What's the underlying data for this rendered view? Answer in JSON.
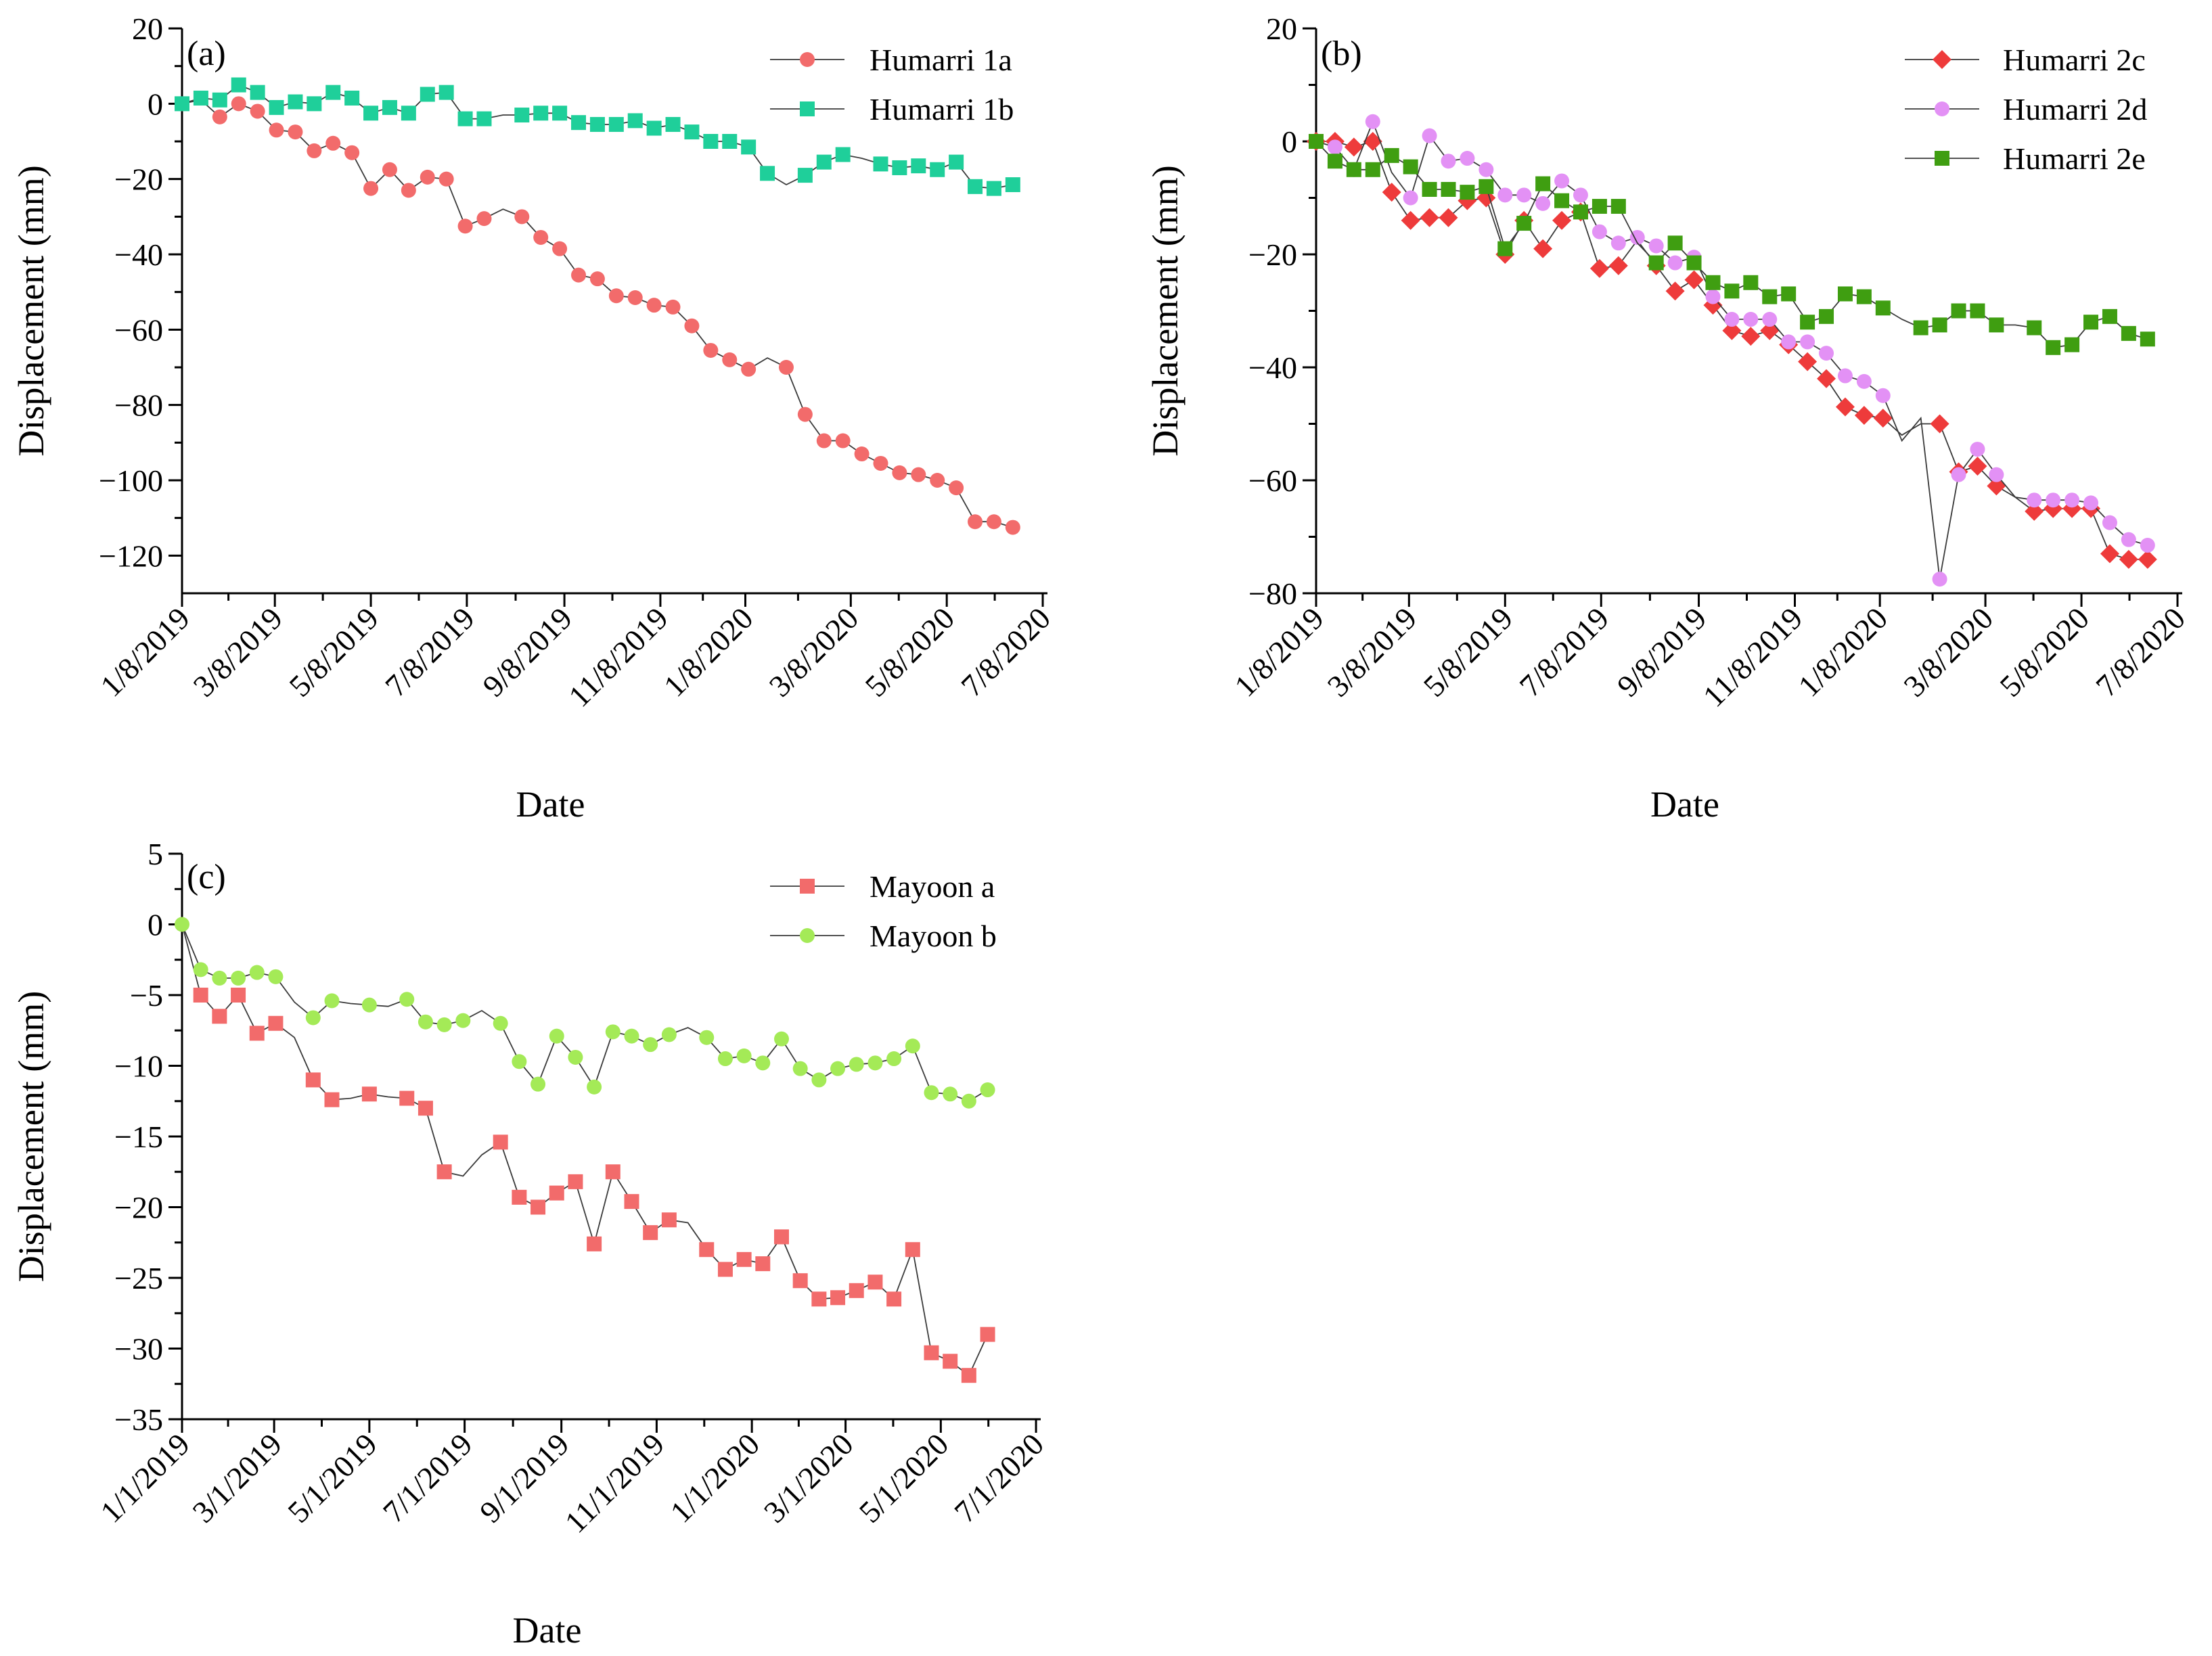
{
  "chart_data": [
    {
      "type": "line",
      "panel_label": "(a)",
      "xlabel": "Date",
      "ylabel": "Displacement (mm)",
      "ylim": [
        -130,
        20
      ],
      "yticks": [
        20,
        0,
        -20,
        -40,
        -60,
        -80,
        -100,
        -120
      ],
      "ytick_labels": [
        "20",
        "0",
        "−20",
        "−40",
        "−60",
        "−80",
        "−100",
        "−120"
      ],
      "xlim_days": [
        0,
        550
      ],
      "xticks_days": [
        0,
        59,
        120,
        181,
        243,
        304,
        358,
        425,
        486,
        547
      ],
      "xtick_labels": [
        "1/8/2019",
        "3/8/2019",
        "5/8/2019",
        "7/8/2019",
        "9/8/2019",
        "11/8/2019",
        "1/8/2020",
        "3/8/2020",
        "5/8/2020",
        "7/8/2020"
      ],
      "legend_position": "top-right",
      "series": [
        {
          "name": "Humarri 1a",
          "marker": "circle",
          "color": "#f26b6b",
          "x": [
            0,
            12,
            24,
            36,
            48,
            60,
            72,
            84,
            96,
            108,
            120,
            132,
            144,
            156,
            168,
            180,
            192,
            204,
            216,
            228,
            240,
            252,
            264,
            276,
            288,
            300,
            312,
            324,
            336,
            348,
            360,
            372,
            384,
            396,
            408,
            420,
            432,
            444,
            456,
            468,
            480,
            492,
            504,
            516,
            528
          ],
          "y": [
            0,
            1,
            -3.5,
            0,
            -2,
            -7,
            -7.5,
            -12.5,
            -10.5,
            -13,
            -22.5,
            -17.5,
            -23,
            -19.5,
            -20,
            -32.5,
            -30.5,
            -28,
            -30,
            -35.5,
            -38.5,
            -45.5,
            -46.5,
            -51,
            -51.5,
            -53.5,
            -54,
            -59,
            -65.5,
            -68,
            -70.5,
            -67.5,
            -70,
            -82.5,
            -89.5,
            -89.5,
            -93,
            -95.5,
            -98,
            -98.5,
            -100,
            -102,
            -111,
            -111,
            -112.5
          ],
          "markers_hidden": [
            1,
            17,
            31
          ]
        },
        {
          "name": "Humarri 1b",
          "marker": "square",
          "color": "#1fcf9a",
          "x": [
            0,
            12,
            24,
            36,
            48,
            60,
            72,
            84,
            96,
            108,
            120,
            132,
            144,
            156,
            168,
            180,
            192,
            204,
            216,
            228,
            240,
            252,
            264,
            276,
            288,
            300,
            312,
            324,
            336,
            348,
            360,
            372,
            384,
            396,
            408,
            420,
            432,
            444,
            456,
            468,
            480,
            492,
            504,
            516,
            528
          ],
          "y": [
            0,
            1.5,
            1,
            5,
            3,
            -1,
            0.5,
            0,
            3,
            1.5,
            -2.5,
            -1,
            -2.5,
            2.5,
            3,
            -4,
            -4,
            -3,
            -3,
            -2.5,
            -2.5,
            -5,
            -5.5,
            -5.5,
            -4.5,
            -6.5,
            -5.5,
            -7.5,
            -10,
            -10,
            -11.5,
            -18.5,
            -21.5,
            -19,
            -15.5,
            -13.5,
            -14.5,
            -16,
            -17,
            -16.5,
            -17.5,
            -15.5,
            -22,
            -22.5,
            -21.5
          ],
          "markers_hidden": [
            17,
            32,
            36
          ]
        }
      ]
    },
    {
      "type": "line",
      "panel_label": "(b)",
      "xlabel": "Date",
      "ylabel": "Displacement (mm)",
      "ylim": [
        -80,
        20
      ],
      "yticks": [
        20,
        0,
        -20,
        -40,
        -60,
        -80
      ],
      "ytick_labels": [
        "20",
        "0",
        "−20",
        "−40",
        "−60",
        "−80"
      ],
      "xlim_days": [
        0,
        550
      ],
      "xticks_days": [
        0,
        59,
        120,
        181,
        243,
        304,
        358,
        425,
        486,
        547
      ],
      "xtick_labels": [
        "1/8/2019",
        "3/8/2019",
        "5/8/2019",
        "7/8/2019",
        "9/8/2019",
        "11/8/2019",
        "1/8/2020",
        "3/8/2020",
        "5/8/2020",
        "7/8/2020"
      ],
      "legend_position": "top-right",
      "series": [
        {
          "name": "Humarri 2c",
          "marker": "diamond",
          "color": "#ee3b3b",
          "x": [
            0,
            12,
            24,
            36,
            48,
            60,
            72,
            84,
            96,
            108,
            120,
            132,
            144,
            156,
            168,
            180,
            192,
            204,
            216,
            228,
            240,
            252,
            264,
            276,
            288,
            300,
            312,
            324,
            336,
            348,
            360,
            372,
            384,
            396,
            408,
            420,
            432,
            444,
            456,
            468,
            480,
            492,
            504,
            516,
            528
          ],
          "y": [
            0,
            0,
            -1,
            0,
            -9,
            -14,
            -13.5,
            -13.5,
            -10.5,
            -10,
            -20,
            -14,
            -19,
            -14,
            -12.5,
            -22.5,
            -22,
            -17.5,
            -22,
            -26.5,
            -24.5,
            -29,
            -33.5,
            -34.5,
            -33.5,
            -36,
            -39,
            -42,
            -47,
            -48.5,
            -49,
            -52,
            -50,
            -50,
            -58.5,
            -57.5,
            -61,
            -63,
            -65.5,
            -65,
            -65,
            -65,
            -73,
            -74,
            -74
          ],
          "markers_hidden": [
            17,
            31,
            32,
            37
          ]
        },
        {
          "name": "Humarri 2d",
          "marker": "circle",
          "color": "#e391f5",
          "x": [
            0,
            12,
            24,
            36,
            48,
            60,
            72,
            84,
            96,
            108,
            120,
            132,
            144,
            156,
            168,
            180,
            192,
            204,
            216,
            228,
            240,
            252,
            264,
            276,
            288,
            300,
            312,
            324,
            336,
            348,
            360,
            372,
            384,
            396,
            408,
            420,
            432,
            444,
            456,
            468,
            480,
            492,
            504,
            516,
            528
          ],
          "y": [
            0,
            -1,
            -5,
            3.5,
            -5.5,
            -10,
            1,
            -3.5,
            -3,
            -5,
            -9.5,
            -9.5,
            -11,
            -7,
            -9.5,
            -16,
            -18,
            -17,
            -18.5,
            -21.5,
            -20.5,
            -27.5,
            -31.5,
            -31.5,
            -31.5,
            -35.5,
            -35.5,
            -37.5,
            -41.5,
            -42.5,
            -45,
            -53,
            -49,
            -77.5,
            -59,
            -54.5,
            -59,
            -63,
            -63.5,
            -63.5,
            -63.5,
            -64,
            -67.5,
            -70.5,
            -71.5
          ],
          "markers_hidden": [
            0,
            4,
            31,
            32,
            37
          ]
        },
        {
          "name": "Humarri 2e",
          "marker": "square",
          "color": "#3f9e11",
          "x": [
            0,
            12,
            24,
            36,
            48,
            60,
            72,
            84,
            96,
            108,
            120,
            132,
            144,
            156,
            168,
            180,
            192,
            204,
            216,
            228,
            240,
            252,
            264,
            276,
            288,
            300,
            312,
            324,
            336,
            348,
            360,
            372,
            384,
            396,
            408,
            420,
            432,
            444,
            456,
            468,
            480,
            492,
            504,
            516,
            528
          ],
          "y": [
            0,
            -3.5,
            -5,
            -5,
            -2.5,
            -4.5,
            -8.5,
            -8.5,
            -9,
            -8,
            -19,
            -14.5,
            -7.5,
            -10.5,
            -12.5,
            -11.5,
            -11.5,
            -18,
            -21.5,
            -18,
            -21.5,
            -25,
            -26.5,
            -25,
            -27.5,
            -27,
            -32,
            -31,
            -27,
            -27.5,
            -29.5,
            -31.5,
            -33,
            -32.5,
            -30,
            -30,
            -32.5,
            -32.5,
            -33,
            -36.5,
            -36,
            -32,
            -31,
            -34,
            -35
          ],
          "markers_hidden": [
            17,
            31,
            37
          ]
        }
      ]
    },
    {
      "type": "line",
      "panel_label": "(c)",
      "xlabel": "Date",
      "ylabel": "Displacement (mm)",
      "ylim": [
        -35,
        5
      ],
      "yticks": [
        5,
        0,
        -5,
        -10,
        -15,
        -20,
        -25,
        -30,
        -35
      ],
      "ytick_labels": [
        "5",
        "0",
        "−5",
        "−10",
        "−15",
        "−20",
        "−25",
        "−30",
        "−35"
      ],
      "xlim_days": [
        0,
        550
      ],
      "xticks_days": [
        0,
        59,
        120,
        181,
        243,
        304,
        365,
        425,
        486,
        547
      ],
      "xtick_labels": [
        "1/1/2019",
        "3/1/2019",
        "5/1/2019",
        "7/1/2019",
        "9/1/2019",
        "11/1/2019",
        "1/1/2020",
        "3/1/2020",
        "5/1/2020",
        "7/1/2020"
      ],
      "legend_position": "top-right",
      "series": [
        {
          "name": "Mayoon a",
          "marker": "square",
          "color": "#f26b6b",
          "x": [
            0,
            12,
            24,
            36,
            48,
            60,
            72,
            84,
            96,
            108,
            120,
            132,
            144,
            156,
            168,
            180,
            192,
            204,
            216,
            228,
            240,
            252,
            264,
            276,
            288,
            300,
            312,
            324,
            336,
            348,
            360,
            372,
            384,
            396,
            408,
            420,
            432,
            444,
            456,
            468,
            480,
            492,
            504,
            516
          ],
          "y": [
            0,
            -5,
            -6.5,
            -5,
            -7.7,
            -7,
            -8,
            -11,
            -12.4,
            -12.3,
            -12,
            -12.2,
            -12.3,
            -13,
            -17.5,
            -17.8,
            -16.3,
            -15.4,
            -19.3,
            -20,
            -19,
            -18.2,
            -22.6,
            -17.5,
            -19.6,
            -21.8,
            -20.9,
            -21.1,
            -23,
            -24.4,
            -23.7,
            -24,
            -22.1,
            -25.2,
            -26.5,
            -26.4,
            -25.9,
            -25.3,
            -26.5,
            -23,
            -30.3,
            -30.9,
            -31.9,
            -29
          ],
          "markers_hidden": [
            0,
            6,
            9,
            11,
            15,
            16,
            27
          ]
        },
        {
          "name": "Mayoon b",
          "marker": "circle",
          "color": "#a4ea57",
          "x": [
            0,
            12,
            24,
            36,
            48,
            60,
            72,
            84,
            96,
            108,
            120,
            132,
            144,
            156,
            168,
            180,
            192,
            204,
            216,
            228,
            240,
            252,
            264,
            276,
            288,
            300,
            312,
            324,
            336,
            348,
            360,
            372,
            384,
            396,
            408,
            420,
            432,
            444,
            456,
            468,
            480,
            492,
            504,
            516
          ],
          "y": [
            0,
            -3.2,
            -3.8,
            -3.8,
            -3.4,
            -3.7,
            -5.5,
            -6.6,
            -5.4,
            -5.6,
            -5.7,
            -5.8,
            -5.3,
            -6.9,
            -7.1,
            -6.8,
            -6.1,
            -7,
            -9.7,
            -11.3,
            -7.9,
            -9.4,
            -11.5,
            -7.6,
            -7.9,
            -8.5,
            -7.8,
            -7.3,
            -8,
            -9.5,
            -9.3,
            -9.8,
            -8.1,
            -10.2,
            -11,
            -10.2,
            -9.9,
            -9.8,
            -9.5,
            -8.6,
            -11.9,
            -12,
            -12.5,
            -11.7
          ],
          "markers_hidden": [
            6,
            9,
            11,
            16,
            27
          ]
        }
      ]
    }
  ]
}
